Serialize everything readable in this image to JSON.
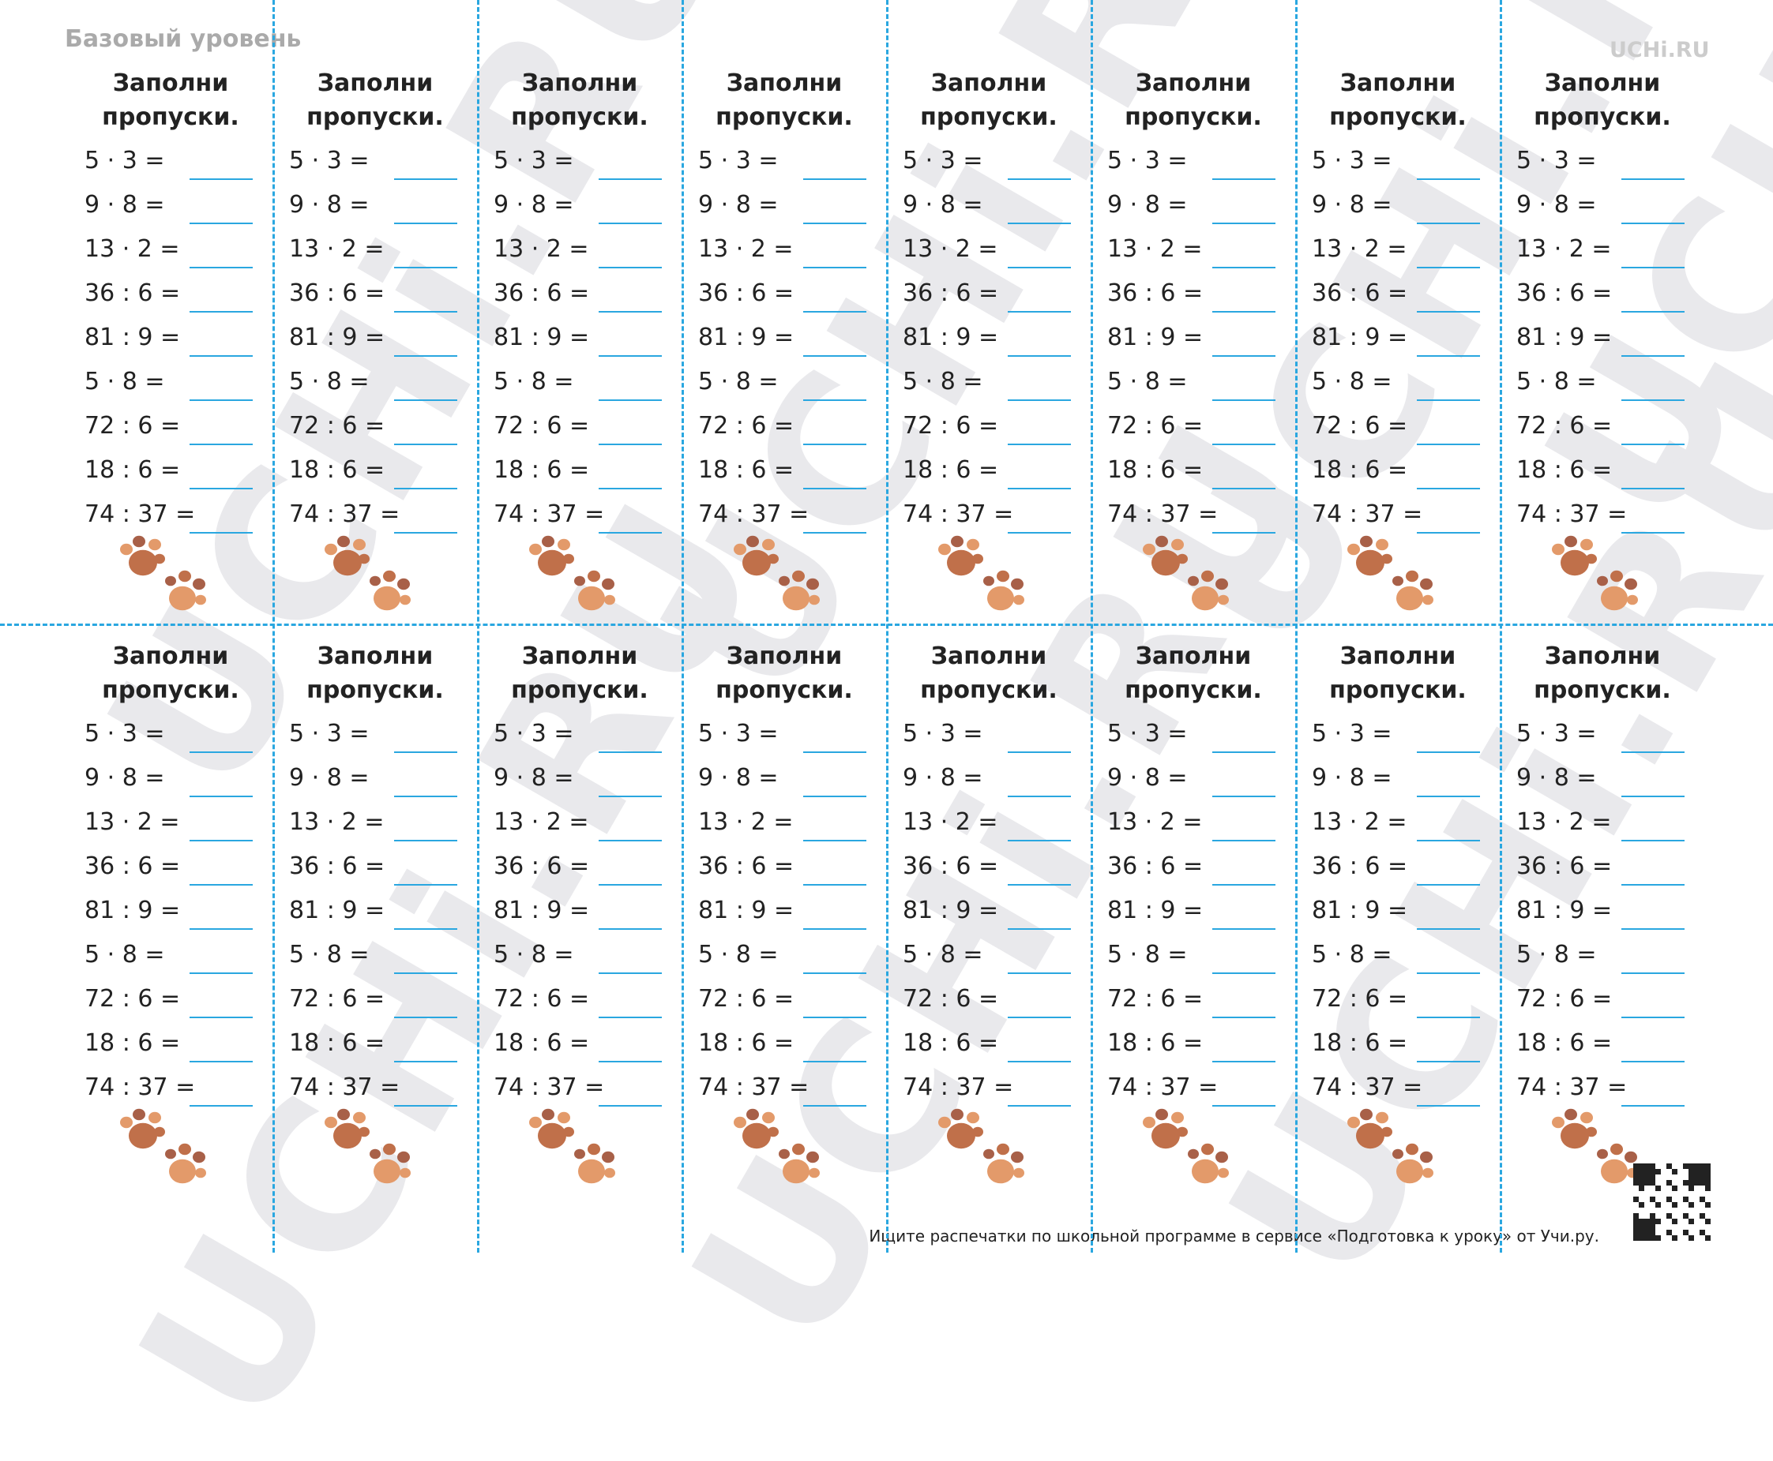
{
  "header": {
    "level": "Базовый уровень",
    "logo": "UCHi.RU"
  },
  "watermark": "UCHi.RU",
  "cards": [
    {
      "title": "Заполни пропуски.",
      "problems": [
        "5 · 3 =",
        "9 · 8 =",
        "13 · 2 =",
        "36 : 6 =",
        "81 : 9 =",
        "5 · 8 =",
        "72 : 6 =",
        "18 : 6 =",
        "74 : 37 ="
      ]
    },
    {
      "title": "Заполни пропуски.",
      "problems": [
        "5 · 3 =",
        "9 · 8 =",
        "13 · 2 =",
        "36 : 6 =",
        "81 : 9 =",
        "5 · 8 =",
        "72 : 6 =",
        "18 : 6 =",
        "74 : 37 ="
      ]
    },
    {
      "title": "Заполни пропуски.",
      "problems": [
        "5 · 3 =",
        "9 · 8 =",
        "13 · 2 =",
        "36 : 6 =",
        "81 : 9 =",
        "5 · 8 =",
        "72 : 6 =",
        "18 : 6 =",
        "74 : 37 ="
      ]
    },
    {
      "title": "Заполни пропуски.",
      "problems": [
        "5 · 3 =",
        "9 · 8 =",
        "13 · 2 =",
        "36 : 6 =",
        "81 : 9 =",
        "5 · 8 =",
        "72 : 6 =",
        "18 : 6 =",
        "74 : 37 ="
      ]
    },
    {
      "title": "Заполни пропуски.",
      "problems": [
        "5 · 3 =",
        "9 · 8 =",
        "13 · 2 =",
        "36 : 6 =",
        "81 : 9 =",
        "5 · 8 =",
        "72 : 6 =",
        "18 : 6 =",
        "74 : 37 ="
      ]
    },
    {
      "title": "Заполни пропуски.",
      "problems": [
        "5 · 3 =",
        "9 · 8 =",
        "13 · 2 =",
        "36 : 6 =",
        "81 : 9 =",
        "5 · 8 =",
        "72 : 6 =",
        "18 : 6 =",
        "74 : 37 ="
      ]
    },
    {
      "title": "Заполни пропуски.",
      "problems": [
        "5 · 3 =",
        "9 · 8 =",
        "13 · 2 =",
        "36 : 6 =",
        "81 : 9 =",
        "5 · 8 =",
        "72 : 6 =",
        "18 : 6 =",
        "74 : 37 ="
      ]
    },
    {
      "title": "Заполни пропуски.",
      "problems": [
        "5 · 3 =",
        "9 · 8 =",
        "13 · 2 =",
        "36 : 6 =",
        "81 : 9 =",
        "5 · 8 =",
        "72 : 6 =",
        "18 : 6 =",
        "74 : 37 ="
      ]
    },
    {
      "title": "Заполни пропуски.",
      "problems": [
        "5 · 3 =",
        "9 · 8 =",
        "13 · 2 =",
        "36 : 6 =",
        "81 : 9 =",
        "5 · 8 =",
        "72 : 6 =",
        "18 : 6 =",
        "74 : 37 ="
      ]
    },
    {
      "title": "Заполни пропуски.",
      "problems": [
        "5 · 3 =",
        "9 · 8 =",
        "13 · 2 =",
        "36 : 6 =",
        "81 : 9 =",
        "5 · 8 =",
        "72 : 6 =",
        "18 : 6 =",
        "74 : 37 ="
      ]
    },
    {
      "title": "Заполни пропуски.",
      "problems": [
        "5 · 3 =",
        "9 · 8 =",
        "13 · 2 =",
        "36 : 6 =",
        "81 : 9 =",
        "5 · 8 =",
        "72 : 6 =",
        "18 : 6 =",
        "74 : 37 ="
      ]
    },
    {
      "title": "Заполни пропуски.",
      "problems": [
        "5 · 3 =",
        "9 · 8 =",
        "13 · 2 =",
        "36 : 6 =",
        "81 : 9 =",
        "5 · 8 =",
        "72 : 6 =",
        "18 : 6 =",
        "74 : 37 ="
      ]
    },
    {
      "title": "Заполни пропуски.",
      "problems": [
        "5 · 3 =",
        "9 · 8 =",
        "13 · 2 =",
        "36 : 6 =",
        "81 : 9 =",
        "5 · 8 =",
        "72 : 6 =",
        "18 : 6 =",
        "74 : 37 ="
      ]
    },
    {
      "title": "Заполни пропуски.",
      "problems": [
        "5 · 3 =",
        "9 · 8 =",
        "13 · 2 =",
        "36 : 6 =",
        "81 : 9 =",
        "5 · 8 =",
        "72 : 6 =",
        "18 : 6 =",
        "74 : 37 ="
      ]
    },
    {
      "title": "Заполни пропуски.",
      "problems": [
        "5 · 3 =",
        "9 · 8 =",
        "13 · 2 =",
        "36 : 6 =",
        "81 : 9 =",
        "5 · 8 =",
        "72 : 6 =",
        "18 : 6 =",
        "74 : 37 ="
      ]
    },
    {
      "title": "Заполни пропуски.",
      "problems": [
        "5 · 3 =",
        "9 · 8 =",
        "13 · 2 =",
        "36 : 6 =",
        "81 : 9 =",
        "5 · 8 =",
        "72 : 6 =",
        "18 : 6 =",
        "74 : 37 ="
      ]
    }
  ],
  "footer": "Ищите распечатки по школьной программе в сервисе «Подготовка к уроку» от Учи.ру."
}
